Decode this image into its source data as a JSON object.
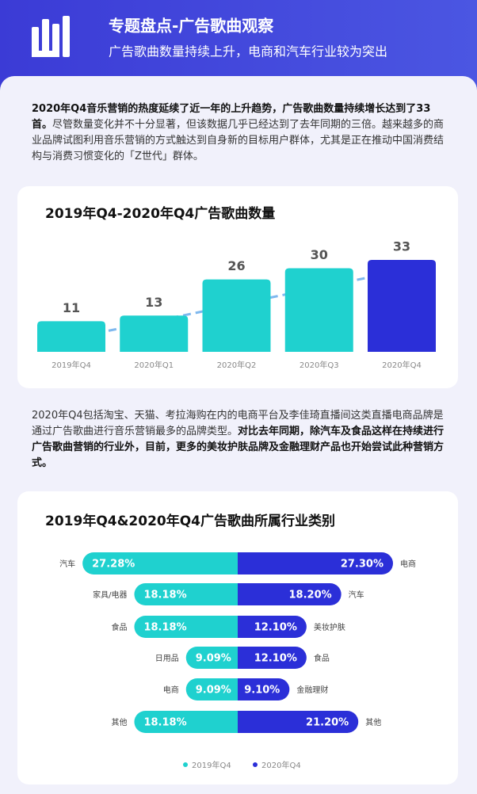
{
  "header": {
    "title": "专题盘点-广告歌曲观察",
    "subtitle": "广告歌曲数量持续上升，电商和汽车行业较为突出"
  },
  "paragraphs": [
    {
      "runs": [
        {
          "text": "2020年Q4音乐营销的热度延续了近一年的上升趋势，广告歌曲数量持续增长达到了33首。",
          "bold": true
        },
        {
          "text": "尽管数量变化并不十分显著，但该数据几乎已经达到了去年同期的三倍。越来越多的商业品牌试图利用音乐营销的方式触达到自身新的目标用户群体，尤其是正在推动中国消费结构与消费习惯变化的「Z世代」群体。",
          "bold": false
        }
      ]
    },
    {
      "runs": [
        {
          "text": "2020年Q4包括淘宝、天猫、考拉海购在内的电商平台及李佳琦直播间这类直播电商品牌是通过广告歌曲进行音乐营销最多的品牌类型。",
          "bold": false
        },
        {
          "text": "对比去年同期，除汽车及食品这样在持续进行广告歌曲营销的行业外，目前，更多的美妆护肤品牌及金融理财产品也开始尝试此种营销方式。",
          "bold": true
        }
      ]
    }
  ],
  "chart_data": [
    {
      "type": "bar",
      "title": "2019年Q4-2020年Q4广告歌曲数量",
      "categories": [
        "2019年Q4",
        "2020年Q1",
        "2020年Q2",
        "2020年Q3",
        "2020年Q4"
      ],
      "values": [
        11,
        13,
        26,
        30,
        33
      ],
      "colors": [
        "#1fd1cf",
        "#1fd1cf",
        "#1fd1cf",
        "#1fd1cf",
        "#2b2fd8"
      ]
    },
    {
      "type": "butterfly",
      "title": "2019年Q4&2020年Q4广告歌曲所属行业类别",
      "series": [
        {
          "name": "2019年Q4",
          "color": "#1fd1cf",
          "categories": [
            "汽车",
            "家具/电器",
            "食品",
            "日用品",
            "电商",
            "其他"
          ],
          "values": [
            27.28,
            18.18,
            18.18,
            9.09,
            9.09,
            18.18
          ],
          "value_labels": [
            "27.28%",
            "18.18%",
            "18.18%",
            "9.09%",
            "9.09%",
            "18.18%"
          ]
        },
        {
          "name": "2020年Q4",
          "color": "#2b2fd8",
          "categories": [
            "电商",
            "汽车",
            "美妆护肤",
            "食品",
            "金融理财",
            "其他"
          ],
          "values": [
            27.3,
            18.2,
            12.1,
            12.1,
            9.1,
            21.2
          ],
          "value_labels": [
            "27.30%",
            "18.20%",
            "12.10%",
            "12.10%",
            "9.10%",
            "21.20%"
          ]
        }
      ]
    }
  ]
}
